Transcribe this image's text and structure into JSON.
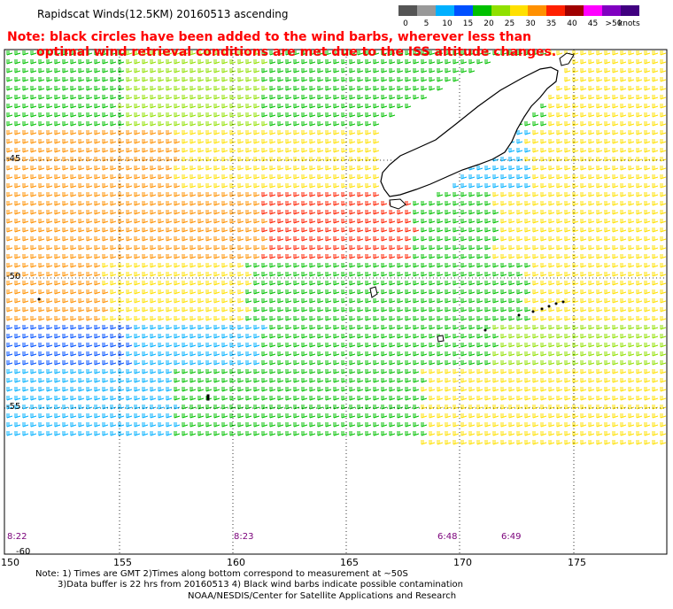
{
  "header": {
    "title": "Rapidscat Winds(12.5KM) 20160513 ascending",
    "note_line1": "Note: black circles have been added to the wind barbs, wherever less than",
    "note_line2": "optimal wind retrieval conditions are met due to the ISS altitude changes."
  },
  "legend": {
    "labels": [
      "0",
      "5",
      "10",
      "15",
      "20",
      "25",
      "30",
      "35",
      "40",
      "45",
      ">50"
    ],
    "unit": "knots",
    "colors": [
      "#555555",
      "#999999",
      "#00b0ff",
      "#0050ff",
      "#00c000",
      "#90e000",
      "#ffe000",
      "#ff9000",
      "#ff2000",
      "#a00000",
      "#ff00ff",
      "#8000c0",
      "#400080"
    ]
  },
  "map": {
    "lon_labels": [
      "150",
      "155",
      "160",
      "165",
      "170",
      "175"
    ],
    "lat_labels": [
      "-45",
      "-50",
      "-55",
      "-60"
    ],
    "time_labels": [
      "8:22",
      "8:23",
      "6:48",
      "6:49"
    ]
  },
  "footer": {
    "line1": "Note: 1) Times are GMT 2)Times along bottom correspond to measurement at ~50S",
    "line2": "3)Data buffer is 22 hrs from 20160513 4) Black wind barbs indicate possible contamination",
    "line3": "NOAA/NESDIS/Center for Satellite Applications and Research"
  }
}
